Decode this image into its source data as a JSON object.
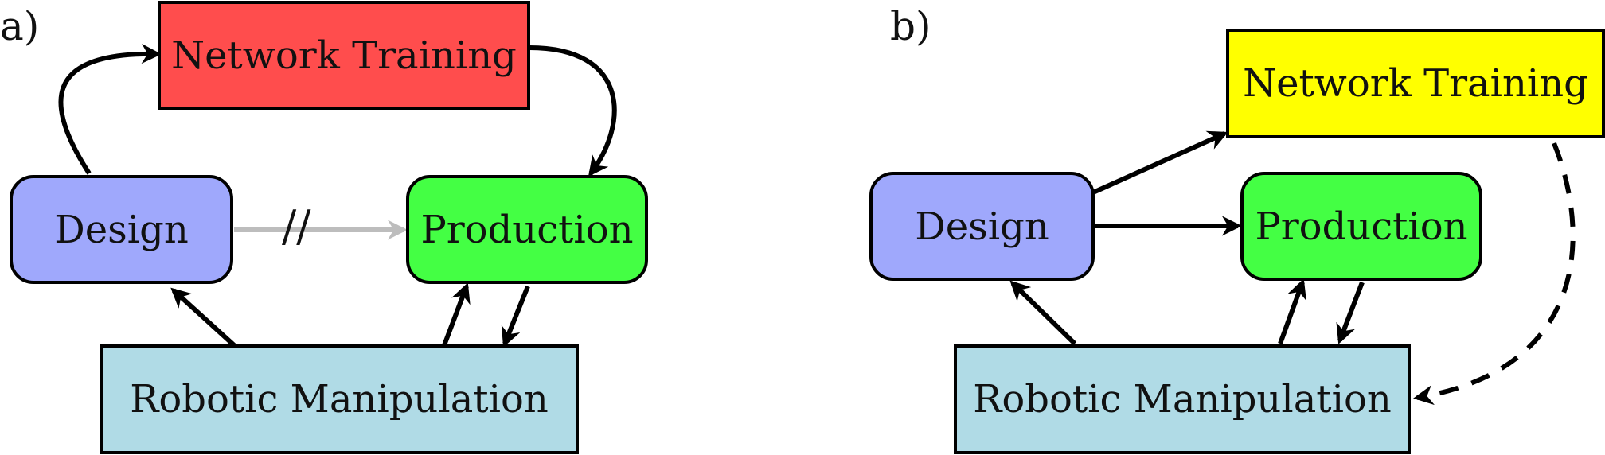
{
  "panels": [
    {
      "label": "a)",
      "nodes": {
        "network_training": {
          "text": "Network Training",
          "color": "#ff4d4d"
        },
        "design": {
          "text": "Design",
          "color": "#9fa8fc"
        },
        "production": {
          "text": "Production",
          "color": "#44ff44"
        },
        "robotic_manipulation": {
          "text": "Robotic Manipulation",
          "color": "#b0dbe6"
        }
      },
      "blocked_mark": "//"
    },
    {
      "label": "b)",
      "nodes": {
        "network_training": {
          "text": "Network Training",
          "color": "#ffff00"
        },
        "design": {
          "text": "Design",
          "color": "#9fa8fc"
        },
        "production": {
          "text": "Production",
          "color": "#44ff44"
        },
        "robotic_manipulation": {
          "text": "Robotic Manipulation",
          "color": "#b0dbe6"
        }
      }
    }
  ],
  "colors": {
    "arrow": "#000000",
    "blocked_arrow": "#bdbdbd"
  }
}
